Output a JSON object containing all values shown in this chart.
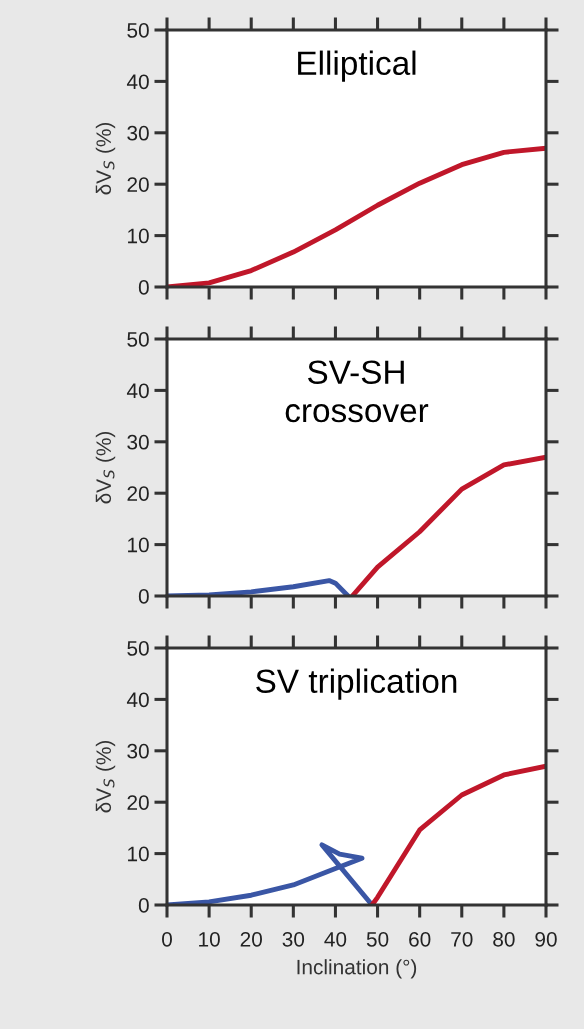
{
  "chart_data": [
    {
      "type": "line",
      "title": "Elliptical",
      "ylabel": "δV$_{S}$ (%)",
      "xlim": [
        0,
        90
      ],
      "ylim": [
        0,
        50
      ],
      "xticks": [
        0,
        10,
        20,
        30,
        40,
        50,
        60,
        70,
        80,
        90
      ],
      "yticks": [
        0,
        10,
        20,
        30,
        40,
        50
      ],
      "tick_labels": "y",
      "series": [
        {
          "color": "#c0172a",
          "x": [
            0,
            10,
            20,
            30,
            40,
            50,
            60,
            70,
            80,
            90
          ],
          "values": [
            0,
            0.8,
            3.2,
            6.8,
            11.1,
            15.9,
            20.2,
            23.8,
            26.2,
            27
          ]
        }
      ]
    },
    {
      "type": "line",
      "title": "SV-SH\ncrossover",
      "ylabel": "δV$_{S}$ (%)",
      "xlim": [
        0,
        90
      ],
      "ylim": [
        0,
        50
      ],
      "xticks": [
        0,
        10,
        20,
        30,
        40,
        50,
        60,
        70,
        80,
        90
      ],
      "yticks": [
        0,
        10,
        20,
        30,
        40,
        50
      ],
      "tick_labels": "y",
      "series": [
        {
          "color": "#3a56a5",
          "x": [
            0,
            10,
            20,
            30,
            38.5,
            40,
            43
          ],
          "values": [
            0,
            0.2,
            0.8,
            1.8,
            3.0,
            2.5,
            0
          ]
        },
        {
          "color": "#c0172a",
          "x": [
            44,
            50,
            60,
            70,
            80,
            90
          ],
          "values": [
            0,
            5.6,
            12.5,
            20.8,
            25.5,
            27
          ]
        }
      ]
    },
    {
      "type": "line",
      "title": "SV triplication",
      "ylabel": "δV$_{S}$ (%)",
      "xlabel": "Inclination (°)",
      "xlim": [
        0,
        90
      ],
      "ylim": [
        0,
        50
      ],
      "xticks": [
        0,
        10,
        20,
        30,
        40,
        50,
        60,
        70,
        80,
        90
      ],
      "yticks": [
        0,
        10,
        20,
        30,
        40,
        50
      ],
      "series": [
        {
          "color": "#3a56a5",
          "x": [
            0,
            10,
            20,
            30,
            40,
            46.3,
            41,
            36.8,
            48.7
          ],
          "values": [
            0,
            0.6,
            1.9,
            3.9,
            7.1,
            9.1,
            9.9,
            11.7,
            0
          ]
        },
        {
          "color": "#c0172a",
          "x": [
            48.7,
            50,
            60,
            70,
            80,
            90
          ],
          "values": [
            0,
            1.5,
            14.6,
            21.4,
            25.3,
            27
          ]
        }
      ]
    }
  ]
}
